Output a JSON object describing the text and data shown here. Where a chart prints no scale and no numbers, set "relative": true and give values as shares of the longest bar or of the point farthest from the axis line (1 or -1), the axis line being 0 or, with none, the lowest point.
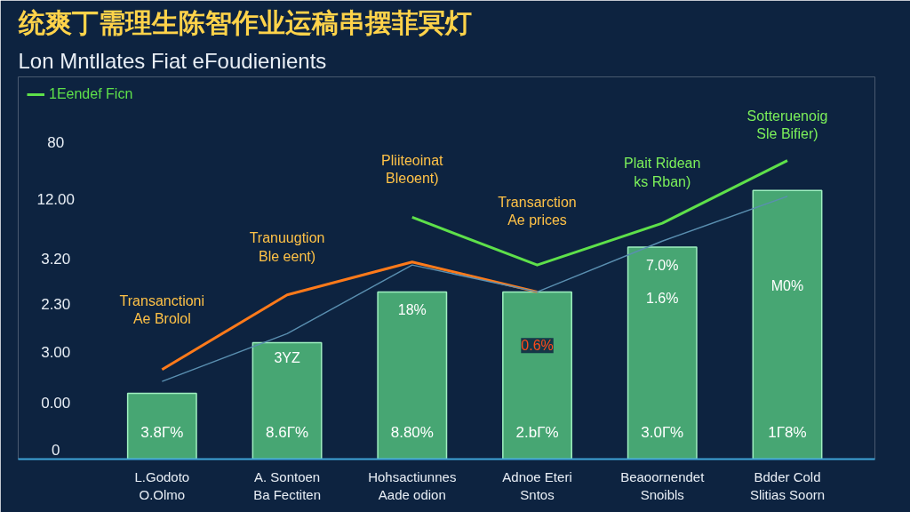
{
  "chart_data": {
    "type": "bar",
    "title": "统爽丁需理生陈智作业运稿串摆菲冥灯",
    "subtitle": "Lon Mntllates Fiat eFoudienients",
    "categories": [
      "L.Godoto\nO.Olmo",
      "A. Sontoen\nBa Fectiten",
      "Hohsactiunnes\nAade odion",
      "Adnoe Eteri\nSntos",
      "Beaoornendet\nSnoibls",
      "Bdder Cold\nSlitias Soorn"
    ],
    "relative": true,
    "legend": "top left",
    "series": [
      {
        "color": "#47a673",
        "values": [
          0.22,
          0.39,
          0.56,
          0.56,
          0.71,
          0.9
        ]
      },
      {
        "type": "line",
        "color": "#ff7a1a",
        "values": [
          0.3,
          0.55,
          0.66,
          0.56,
          null,
          null
        ]
      },
      {
        "type": "line",
        "name": "1Eendef Ficn",
        "color": "#5ee04a",
        "values": [
          null,
          null,
          0.81,
          0.65,
          0.79,
          1.0
        ]
      },
      {
        "type": "line",
        "color": "#5a8fb0",
        "values": [
          0.26,
          0.42,
          0.65,
          0.56,
          0.73,
          0.88
        ]
      }
    ],
    "annotations": [
      "80",
      "12.00",
      "3.20",
      "2.30",
      "3.00",
      "0.00",
      "0",
      "3.8Г%",
      "8.6Г%",
      "8.80%",
      "2.bГ%",
      "3.0Г%",
      "1Г8%",
      "3YZ",
      "18%",
      "0.6%",
      "7.0%",
      "1.6%",
      "M0%",
      "Transanctioni\nAe Brolol",
      "Tranuugtion\nBle eent)",
      "Pliiteoinat\nBleoent)",
      "Transarction\nAe prices",
      "Plait Ridean\nks Rban)",
      "Sotteruenoig\nSle Bifier)"
    ]
  }
}
